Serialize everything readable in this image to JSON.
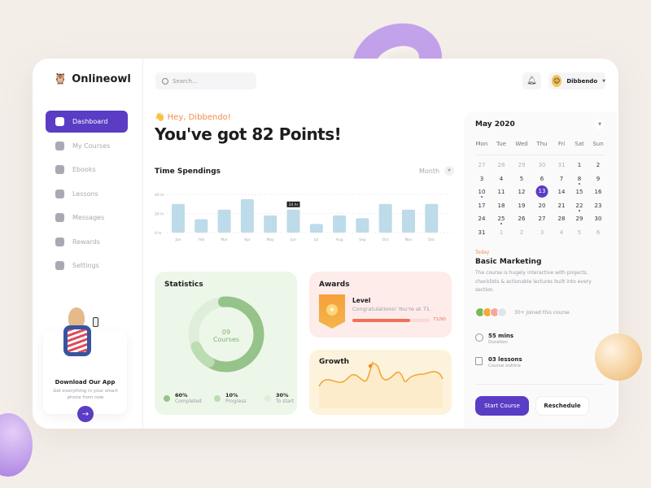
{
  "app": {
    "name": "Onlineowl"
  },
  "sidebar": {
    "items": [
      {
        "label": "Dashboard",
        "icon": "chart-icon",
        "active": true
      },
      {
        "label": "My Courses",
        "icon": "fire-icon"
      },
      {
        "label": "Ebooks",
        "icon": "book-icon"
      },
      {
        "label": "Lessons",
        "icon": "clock-icon"
      },
      {
        "label": "Messages",
        "icon": "message-icon"
      },
      {
        "label": "Rewards",
        "icon": "card-icon"
      },
      {
        "label": "Settings",
        "icon": "hexagon-icon"
      }
    ]
  },
  "promo": {
    "title": "Download Our App",
    "text": "Get everything in your smart phone from now",
    "button_icon": "arrow-right-icon"
  },
  "header": {
    "search_placeholder": "Search...",
    "user": "Dibbendo"
  },
  "hero": {
    "greeting": "Hey, Dibbendo!",
    "title": "You've got 82 Points!"
  },
  "chart_data": {
    "type": "bar",
    "title": "Time Spendings",
    "filter": "Month",
    "categories": [
      "Jan",
      "Feb",
      "Mar",
      "Apr",
      "May",
      "Jun",
      "Jul",
      "Aug",
      "Sep",
      "Oct",
      "Nov",
      "Dec"
    ],
    "values": [
      30,
      14,
      24,
      35,
      18,
      24,
      9,
      18,
      15,
      30,
      24,
      30
    ],
    "yticks": [
      "0 hr",
      "20 hr",
      "40 hr"
    ],
    "ylim": [
      0,
      40
    ],
    "tooltip": "24 hr",
    "highlight": "Jun",
    "color": "#bddbe8"
  },
  "statistics": {
    "title": "Statistics",
    "center_value": "09",
    "center_label": "Courses",
    "legend": [
      {
        "value": "60%",
        "label": "Completed",
        "color": "#95c38a"
      },
      {
        "value": "10%",
        "label": "Progress",
        "color": "#bcdcb2"
      },
      {
        "value": "30%",
        "label": "To start",
        "color": "#dfeeda"
      }
    ]
  },
  "awards": {
    "title": "Awards",
    "level_label": "Level",
    "message": "Congratulations! You're at 71.",
    "progress": "71/90",
    "progress_value": 71,
    "progress_max": 90
  },
  "growth": {
    "title": "Growth"
  },
  "calendar": {
    "month": "May 2020",
    "weekdays": [
      "Mon",
      "Tue",
      "Wed",
      "Thu",
      "Fri",
      "Sat",
      "Sun"
    ],
    "days": [
      "27",
      "28",
      "29",
      "30",
      "31",
      "1",
      "2",
      "3",
      "4",
      "5",
      "6",
      "7",
      "8",
      "9",
      "10",
      "11",
      "12",
      "13",
      "14",
      "15",
      "16",
      "17",
      "18",
      "19",
      "20",
      "21",
      "22",
      "23",
      "24",
      "25",
      "26",
      "27",
      "28",
      "29",
      "30",
      "31",
      "1",
      "2",
      "3",
      "4",
      "5",
      "6"
    ],
    "selected": "13",
    "event_days": [
      "8",
      "10",
      "22",
      "25"
    ]
  },
  "today": {
    "label": "Today",
    "course": "Basic Marketing",
    "description": "The course is hugely interactive with projects, checklists & actionable lectures built into every section.",
    "joined": "30+ Joined this course",
    "duration": "55 mins",
    "duration_label": "Duration",
    "lessons": "03 lessons",
    "lessons_label": "Course outline",
    "start": "Start Course",
    "reschedule": "Reschedule"
  },
  "colors": {
    "accent": "#5b3cc4",
    "orange": "#f58a4c",
    "green": "#95c38a"
  }
}
